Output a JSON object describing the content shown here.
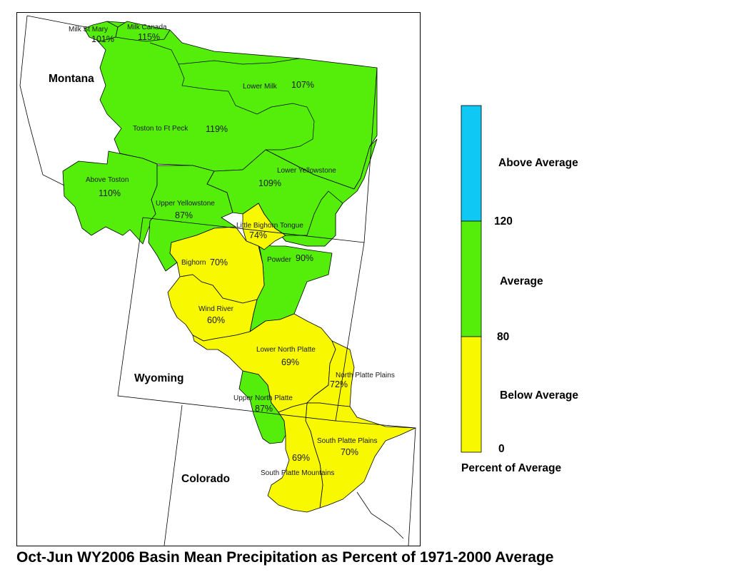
{
  "title": "Oct-Jun WY2006 Basin Mean Precipitation as Percent of 1971-2000 Average",
  "colors": {
    "above_average": "#10c8f4",
    "average": "#55ee0a",
    "below_average": "#f8f800",
    "state_border": "#000000",
    "basin_border": "#000000"
  },
  "states": [
    {
      "name": "Montana"
    },
    {
      "name": "Wyoming"
    },
    {
      "name": "Colorado"
    }
  ],
  "basins": [
    {
      "name": "Milk St Mary",
      "percent": "101%",
      "category": "average"
    },
    {
      "name": "Milk Canada",
      "percent": "115%",
      "category": "average"
    },
    {
      "name": "Lower Milk",
      "percent": "107%",
      "category": "average"
    },
    {
      "name": "Toston to Ft Peck",
      "percent": "119%",
      "category": "average"
    },
    {
      "name": "Lower Yellowstone",
      "percent": "109%",
      "category": "average"
    },
    {
      "name": "Above Toston",
      "percent": "110%",
      "category": "average"
    },
    {
      "name": "Upper Yellowstone",
      "percent": "87%",
      "category": "average"
    },
    {
      "name": "Little Bighorn Tongue",
      "percent": "74%",
      "category": "below_average"
    },
    {
      "name": "Powder",
      "percent": "90%",
      "category": "average"
    },
    {
      "name": "Bighorn",
      "percent": "70%",
      "category": "below_average"
    },
    {
      "name": "Wind River",
      "percent": "60%",
      "category": "below_average"
    },
    {
      "name": "Lower North Platte",
      "percent": "69%",
      "category": "below_average"
    },
    {
      "name": "North Platte Plains",
      "percent": "72%",
      "category": "below_average"
    },
    {
      "name": "Upper North Platte",
      "percent": "87%",
      "category": "average"
    },
    {
      "name": "South Platte Plains",
      "percent": "70%",
      "category": "below_average"
    },
    {
      "name": "South Platte Mountains",
      "percent": "69%",
      "category": "below_average"
    }
  ],
  "legend": {
    "title": "Percent of Average",
    "classes": [
      {
        "label": "Above Average",
        "category": "above_average",
        "range": [
          120,
          null
        ]
      },
      {
        "label": "Average",
        "category": "average",
        "range": [
          80,
          120
        ]
      },
      {
        "label": "Below Average",
        "category": "below_average",
        "range": [
          0,
          80
        ]
      }
    ],
    "breaks": [
      "120",
      "80",
      "0"
    ]
  }
}
